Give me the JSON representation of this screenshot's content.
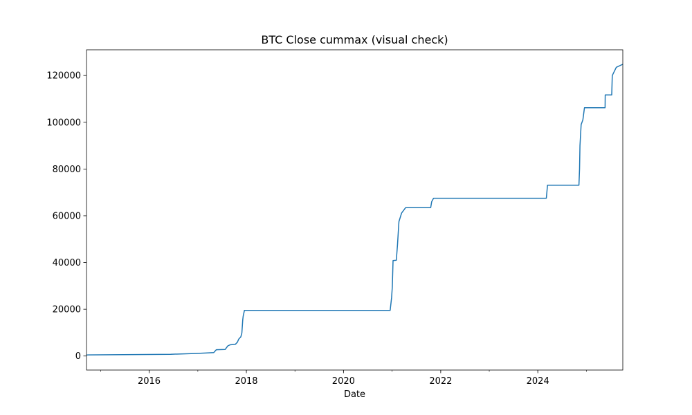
{
  "chart_data": {
    "type": "line",
    "title": "BTC Close cummax (visual check)",
    "xlabel": "Date",
    "ylabel": "",
    "xlim": [
      "2014-09-17",
      "2025-10-01"
    ],
    "ylim": [
      -6000,
      131000
    ],
    "x_ticks": [
      "2016-01-01",
      "2018-01-01",
      "2020-01-01",
      "2022-01-01",
      "2024-01-01"
    ],
    "x_tick_labels": [
      "2016",
      "2018",
      "2020",
      "2022",
      "2024"
    ],
    "y_ticks": [
      0,
      20000,
      40000,
      60000,
      80000,
      100000,
      120000
    ],
    "y_tick_labels": [
      "0",
      "20000",
      "40000",
      "60000",
      "80000",
      "100000",
      "120000"
    ],
    "grid": false,
    "line_color": "#1f77b4",
    "series": [
      {
        "x": [
          "2014-09-17",
          "2016-06-10",
          "2016-12-20",
          "2017-03-01",
          "2017-05-01",
          "2017-05-20",
          "2017-07-25",
          "2017-08-15",
          "2017-09-01",
          "2017-10-10",
          "2017-10-25",
          "2017-11-05",
          "2017-11-20",
          "2017-11-28",
          "2017-12-05",
          "2017-12-08",
          "2017-12-17",
          "2020-12-17",
          "2020-12-28",
          "2021-01-02",
          "2021-01-08",
          "2021-02-01",
          "2021-02-10",
          "2021-02-21",
          "2021-03-13",
          "2021-04-13",
          "2021-10-18",
          "2021-10-25",
          "2021-11-08",
          "2024-03-05",
          "2024-03-14",
          "2024-11-05",
          "2024-11-10",
          "2024-11-13",
          "2024-11-22",
          "2024-12-05",
          "2024-12-17",
          "2025-05-21",
          "2025-05-22",
          "2025-07-10",
          "2025-07-14",
          "2025-08-13",
          "2025-09-30"
        ],
        "y": [
          457,
          760,
          1100,
          1290,
          1500,
          2700,
          2800,
          4350,
          4800,
          5000,
          5900,
          7300,
          8200,
          9800,
          15500,
          17000,
          19500,
          19500,
          25000,
          29500,
          40800,
          41000,
          47500,
          57500,
          61200,
          63500,
          63500,
          66000,
          67500,
          67500,
          73100,
          73100,
          80000,
          90000,
          99000,
          101000,
          106200,
          106200,
          111700,
          111700,
          120000,
          123500,
          124800
        ]
      }
    ]
  }
}
